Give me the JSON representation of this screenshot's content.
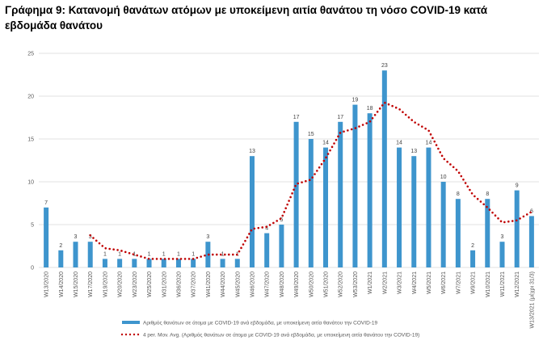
{
  "chart_data": {
    "type": "bar",
    "title": "Γράφημα 9: Κατανομή θανάτων ατόμων με υποκείμενη αιτία θανάτου τη νόσο COVID-19 κατά εβδομάδα θανάτου",
    "xlabel": "",
    "ylabel": "",
    "ylim": [
      0,
      25
    ],
    "yticks": [
      0,
      5,
      10,
      15,
      20,
      25
    ],
    "grid": true,
    "legend_position": "bottom",
    "categories": [
      "W13/2020",
      "W14/2020",
      "W15/2020",
      "W17/2020",
      "W19/2020",
      "W20/2020",
      "W23/2020",
      "W25/2020",
      "W31/2020",
      "W36/2020",
      "W37/2020",
      "W41/2020",
      "W44/2020",
      "W45/2020",
      "W46/2020",
      "W47/2020",
      "W48/2020",
      "W49/2020",
      "W50/2020",
      "W51/2020",
      "W52/2020",
      "W53/2020",
      "W1/2021",
      "W2/2021",
      "W3/2021",
      "W4/2021",
      "W5/2021",
      "W6/2021",
      "W7/2021",
      "W9/2021",
      "W10/2021",
      "W11/2021",
      "W12/2021",
      "W13/2021 (μέχρι 31/3)"
    ],
    "series": [
      {
        "name": "Αριθμός θανάτων σε άτομα με COVID-19 ανά εβδομάδα, με υποκείμενη αιτία θανάτου την COVID-19",
        "type": "bar",
        "color": "#3E95CD",
        "values": [
          7,
          2,
          3,
          3,
          1,
          1,
          1,
          1,
          1,
          1,
          1,
          3,
          1,
          1,
          13,
          4,
          5,
          17,
          15,
          14,
          17,
          19,
          18,
          23,
          14,
          13,
          14,
          10,
          8,
          2,
          8,
          3,
          9,
          6
        ]
      },
      {
        "name": "4 per. Mov. Avg. (Αριθμός θανάτων σε άτομα με COVID-19 ανά εβδομάδα, με υποκείμενη αιτία θανάτου την COVID-19)",
        "type": "line",
        "style": "dotted",
        "color": "#C00000",
        "period": 4
      }
    ]
  }
}
